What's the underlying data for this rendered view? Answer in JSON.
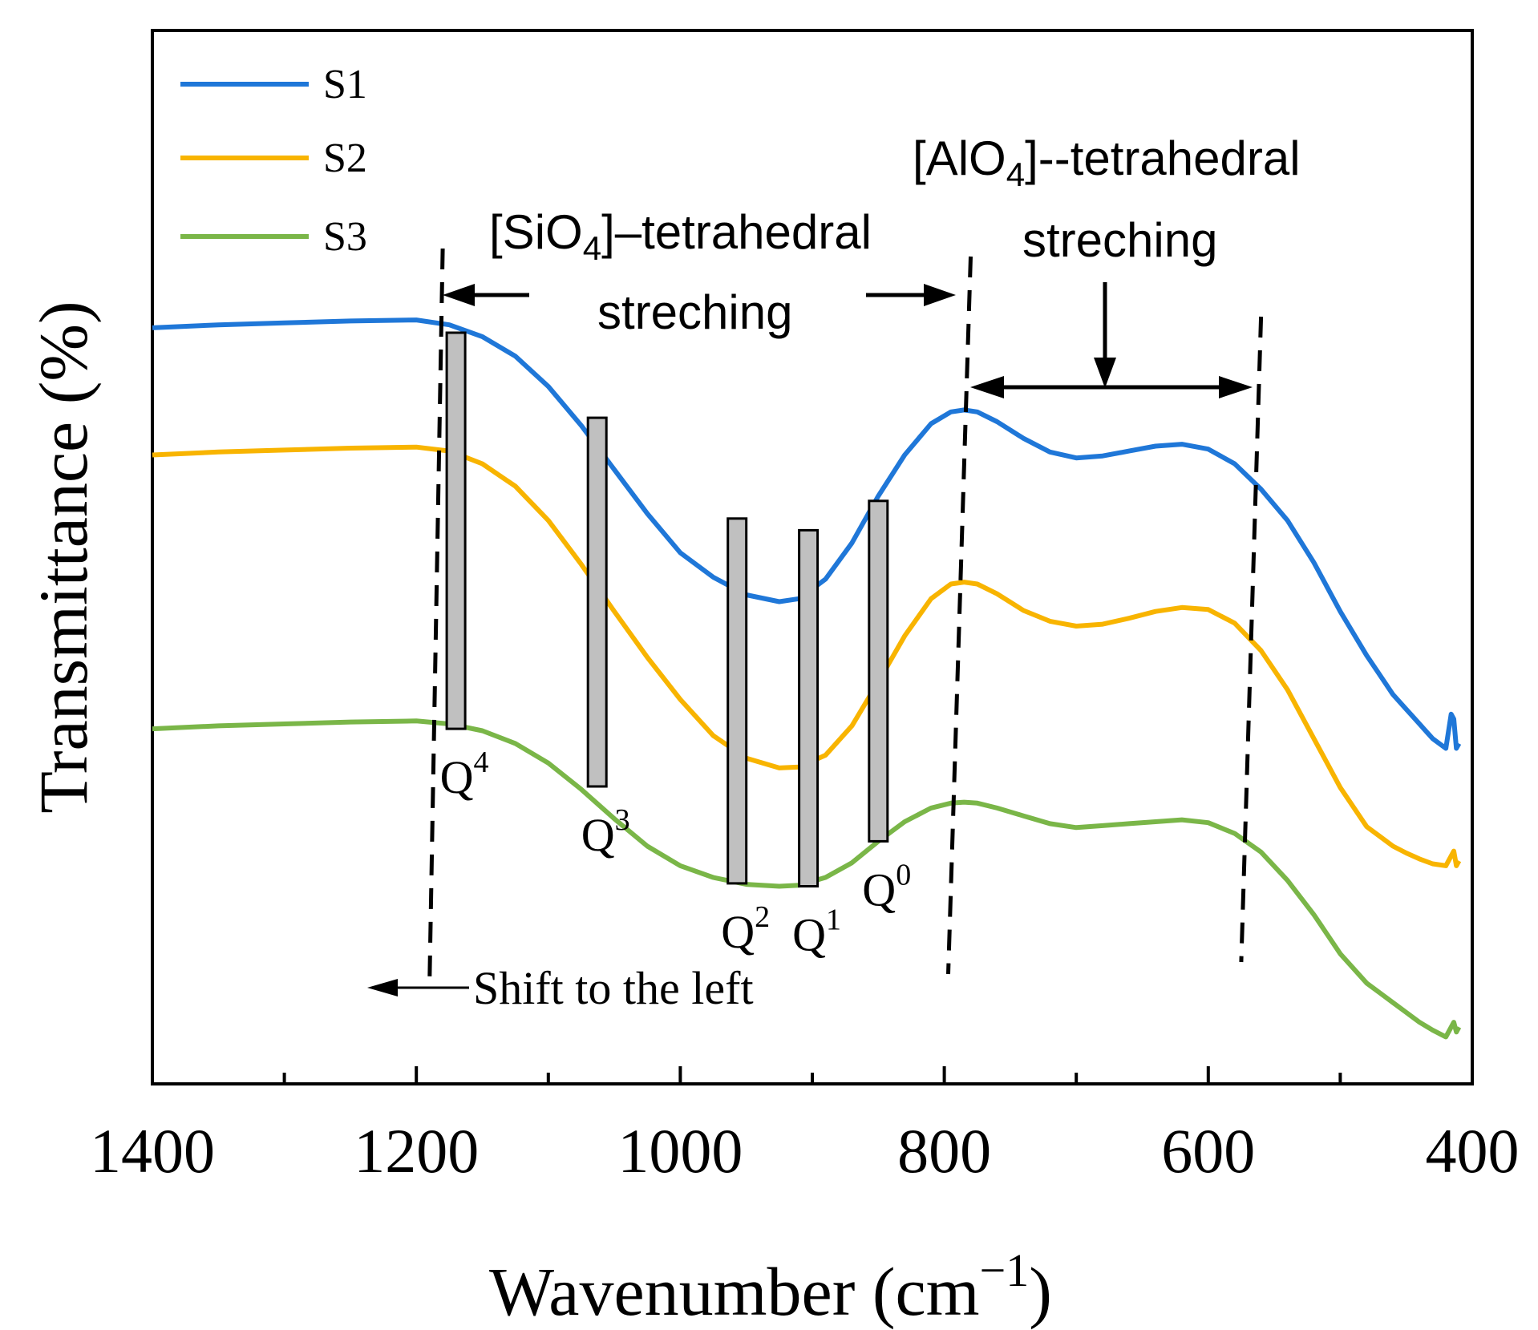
{
  "chart_data": {
    "type": "line",
    "title": "",
    "xlabel": "Wavenumber (cm",
    "xlabel_sup": "−1",
    "xlabel_close": ")",
    "ylabel": "Transmittance (%)",
    "xlim": [
      1400,
      400
    ],
    "x_reversed": true,
    "yaxis_ticks_shown": false,
    "ylim": [
      0,
      100
    ],
    "x_ticks": [
      1400,
      1200,
      1000,
      800,
      600,
      400
    ],
    "x_tick_labels": [
      "1400",
      "1200",
      "1000",
      "800",
      "600",
      "400"
    ],
    "x_minor_ticks": [
      1300,
      1100,
      900,
      700,
      500
    ],
    "legend": {
      "position": "top-left",
      "entries": [
        {
          "name": "S1",
          "color": "#1f77d8"
        },
        {
          "name": "S2",
          "color": "#f8b400"
        },
        {
          "name": "S3",
          "color": "#7ab648"
        }
      ]
    },
    "series": [
      {
        "name": "S1",
        "color": "#1f77d8",
        "x": [
          1400,
          1350,
          1300,
          1250,
          1200,
          1175,
          1150,
          1125,
          1100,
          1075,
          1050,
          1025,
          1000,
          975,
          950,
          925,
          910,
          890,
          870,
          850,
          830,
          810,
          795,
          785,
          775,
          760,
          740,
          720,
          700,
          680,
          660,
          640,
          620,
          600,
          580,
          560,
          540,
          520,
          500,
          480,
          470,
          460,
          450,
          440,
          430,
          420,
          416,
          414,
          412,
          410
        ],
        "y": [
          75.5,
          75.8,
          76.0,
          76.2,
          76.3,
          75.8,
          74.6,
          72.6,
          69.5,
          65.5,
          61.0,
          56.5,
          52.5,
          50.0,
          48.2,
          47.5,
          47.8,
          49.8,
          53.5,
          58.3,
          62.5,
          65.7,
          66.9,
          67.1,
          66.9,
          65.9,
          64.2,
          62.8,
          62.2,
          62.4,
          62.9,
          63.4,
          63.6,
          63.1,
          61.6,
          59.0,
          55.8,
          51.5,
          46.5,
          42.0,
          40.0,
          38.0,
          36.5,
          35.0,
          33.5,
          32.5,
          36.0,
          35.5,
          32.5,
          33.0
        ]
      },
      {
        "name": "S2",
        "color": "#f8b400",
        "x": [
          1400,
          1350,
          1300,
          1250,
          1200,
          1175,
          1150,
          1125,
          1100,
          1075,
          1050,
          1025,
          1000,
          975,
          950,
          925,
          910,
          890,
          870,
          850,
          830,
          810,
          795,
          785,
          775,
          760,
          740,
          720,
          700,
          680,
          660,
          640,
          620,
          600,
          580,
          560,
          540,
          520,
          500,
          480,
          470,
          460,
          450,
          440,
          430,
          420,
          416,
          414,
          412,
          410
        ],
        "y": [
          62.5,
          62.8,
          63.0,
          63.2,
          63.3,
          62.9,
          61.6,
          59.3,
          55.8,
          51.3,
          46.5,
          41.8,
          37.5,
          33.8,
          31.5,
          30.5,
          30.6,
          31.8,
          34.8,
          39.3,
          44.0,
          47.8,
          49.3,
          49.5,
          49.3,
          48.3,
          46.6,
          45.5,
          45.0,
          45.2,
          45.8,
          46.5,
          46.9,
          46.7,
          45.3,
          42.5,
          38.5,
          33.5,
          28.5,
          24.5,
          23.5,
          22.5,
          21.8,
          21.2,
          20.7,
          20.5,
          21.5,
          22.0,
          20.5,
          21.0
        ]
      },
      {
        "name": "S3",
        "color": "#7ab648",
        "x": [
          1400,
          1350,
          1300,
          1250,
          1200,
          1175,
          1150,
          1125,
          1100,
          1075,
          1050,
          1025,
          1000,
          975,
          950,
          925,
          910,
          890,
          870,
          850,
          830,
          810,
          795,
          785,
          775,
          760,
          740,
          720,
          700,
          680,
          660,
          640,
          620,
          600,
          580,
          560,
          540,
          520,
          500,
          480,
          470,
          460,
          450,
          440,
          430,
          420,
          416,
          414,
          412,
          410
        ],
        "y": [
          34.5,
          34.8,
          35.0,
          35.2,
          35.3,
          35.0,
          34.3,
          33.0,
          31.0,
          28.3,
          25.3,
          22.5,
          20.5,
          19.3,
          18.6,
          18.4,
          18.5,
          19.3,
          20.8,
          23.0,
          25.0,
          26.4,
          26.9,
          27.0,
          26.9,
          26.4,
          25.6,
          24.8,
          24.4,
          24.6,
          24.8,
          25.0,
          25.2,
          24.9,
          23.8,
          21.9,
          19.0,
          15.5,
          11.5,
          8.5,
          7.5,
          6.5,
          5.5,
          4.5,
          3.7,
          3.0,
          4.0,
          4.5,
          3.5,
          4.0
        ]
      }
    ],
    "q_bars": [
      {
        "label": "Q",
        "sup": "4",
        "x": 1170,
        "y_top": 75.0,
        "y_bottom": 34.5
      },
      {
        "label": "Q",
        "sup": "3",
        "x": 1063,
        "y_top": 66.3,
        "y_bottom": 28.6
      },
      {
        "label": "Q",
        "sup": "2",
        "x": 957,
        "y_top": 56.0,
        "y_bottom": 18.7
      },
      {
        "label": "Q",
        "sup": "1",
        "x": 903,
        "y_top": 54.8,
        "y_bottom": 18.4
      },
      {
        "label": "Q",
        "sup": "0",
        "x": 850,
        "y_top": 57.8,
        "y_bottom": 23.0
      }
    ],
    "dashed_lines": [
      {
        "x_top": 1180,
        "x_bottom": 1190
      },
      {
        "x_top": 780,
        "x_bottom": 797
      },
      {
        "x_top": 560,
        "x_bottom": 575
      }
    ],
    "annotations": {
      "sio4_a": "[SiO",
      "sio4_sub": "4",
      "sio4_b": "]–tetrahedral",
      "sio4_line2": "streching",
      "alo4_a": "[AlO",
      "alo4_sub": "4",
      "alo4_b": "]--tetrahedral",
      "alo4_line2": "streching",
      "shift": "Shift to the left"
    }
  }
}
